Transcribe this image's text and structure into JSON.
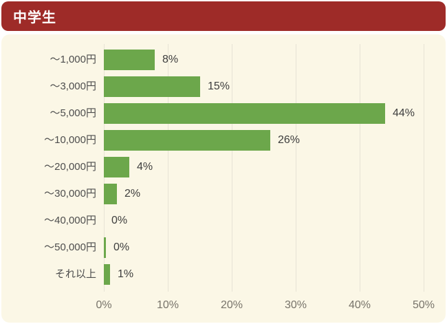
{
  "header": {
    "title": "中学生",
    "bg_color": "#9e2b28",
    "text_color": "#ffffff"
  },
  "panel": {
    "bg_color": "#fbf7e6"
  },
  "chart_data": {
    "type": "bar",
    "orientation": "horizontal",
    "title": "中学生",
    "categories": [
      "～1,000円",
      "～3,000円",
      "～5,000円",
      "～10,000円",
      "～20,000円",
      "～30,000円",
      "～40,000円",
      "～50,000円",
      "それ以上"
    ],
    "values": [
      8,
      15,
      44,
      26,
      4,
      2,
      0,
      0,
      1
    ],
    "value_labels": [
      "8%",
      "15%",
      "44%",
      "26%",
      "4%",
      "2%",
      "0%",
      "0%",
      "1%"
    ],
    "draw_widths_pct": [
      8,
      15,
      44,
      26,
      4,
      2,
      0,
      0.3,
      1
    ],
    "x_ticks": [
      "0%",
      "10%",
      "20%",
      "30%",
      "40%",
      "50%"
    ],
    "x_tick_values": [
      0,
      10,
      20,
      30,
      40,
      50
    ],
    "xlim": [
      0,
      50
    ],
    "xlabel": "",
    "ylabel": "",
    "grid": true,
    "legend": false,
    "bar_color": "#6ca74b",
    "gridline_color": "#e7e3d5",
    "category_text_color": "#4d4d4d",
    "value_text_color": "#3d3d3d",
    "tick_text_color": "#77736a"
  }
}
